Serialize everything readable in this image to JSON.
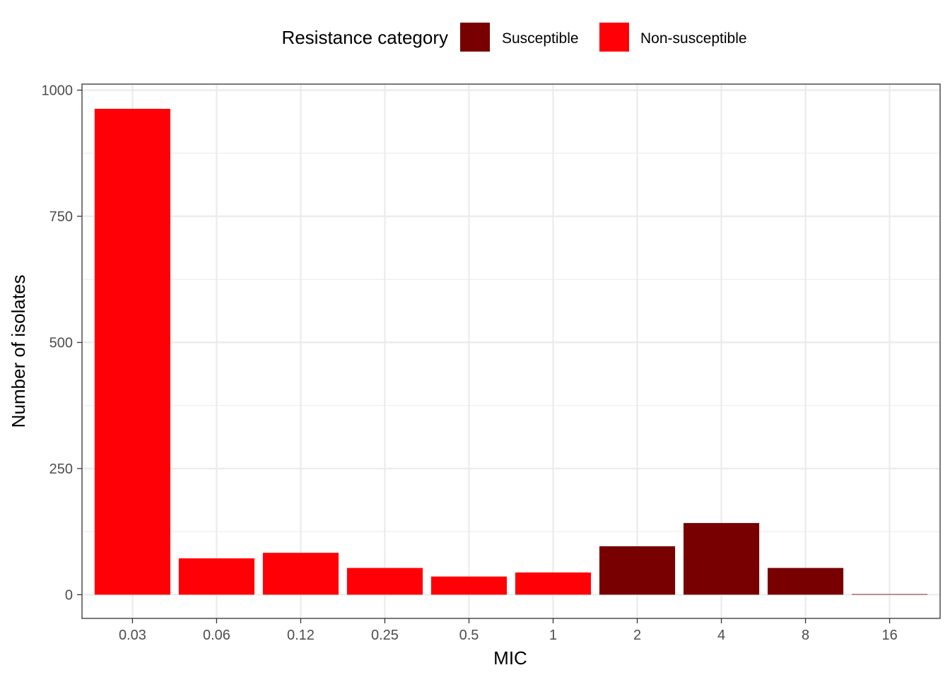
{
  "chart_data": {
    "type": "bar",
    "xlabel": "MIC",
    "ylabel": "Number of isolates",
    "categories": [
      "0.03",
      "0.06",
      "0.12",
      "0.25",
      "0.5",
      "1",
      "2",
      "4",
      "8",
      "16"
    ],
    "values": [
      963,
      72,
      83,
      53,
      36,
      44,
      96,
      142,
      53,
      1
    ],
    "bar_category": [
      "Non-susceptible",
      "Non-susceptible",
      "Non-susceptible",
      "Non-susceptible",
      "Non-susceptible",
      "Non-susceptible",
      "Susceptible",
      "Susceptible",
      "Susceptible",
      "Susceptible"
    ],
    "ylim": [
      -47,
      1012
    ],
    "yticks": [
      0,
      250,
      500,
      750,
      1000
    ],
    "yticks_minor": [
      125,
      375,
      625,
      875
    ],
    "grid": true,
    "legend": {
      "title": "Resistance category",
      "position": "top",
      "entries": [
        {
          "name": "Susceptible",
          "color": "#780000"
        },
        {
          "name": "Non-susceptible",
          "color": "#FF0007"
        }
      ]
    }
  }
}
